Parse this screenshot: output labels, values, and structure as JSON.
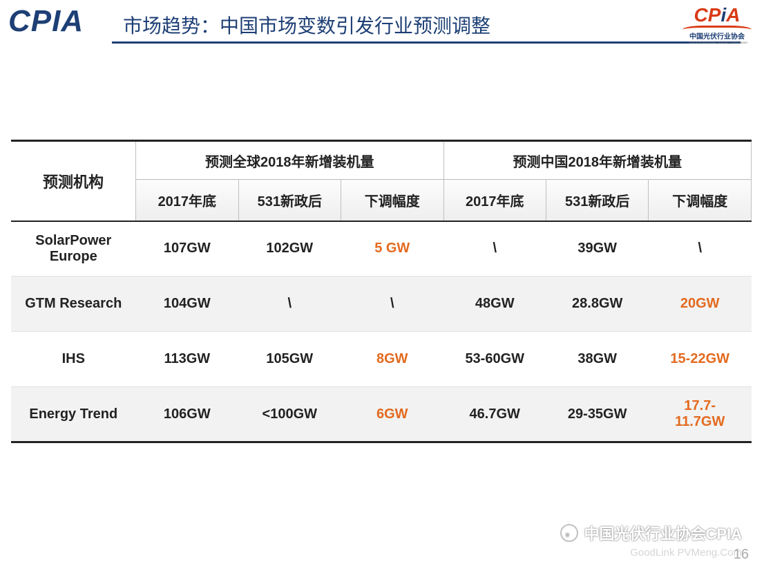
{
  "header": {
    "logo_left": "CPIA",
    "title": "市场趋势：中国市场变数引发行业预测调整",
    "logo_right_main_pre": "CP",
    "logo_right_main_mid": "i",
    "logo_right_main_post": "A",
    "logo_right_sub": "中国光伏行业协会",
    "logo_right_sub2": "China Photovoltaic Industry Association"
  },
  "table": {
    "corner": "预测机构",
    "group_global": "预测全球2018年新增装机量",
    "group_china": "预测中国2018年新增装机量",
    "sub_headers": [
      "2017年底",
      "531新政后",
      "下调幅度",
      "2017年底",
      "531新政后",
      "下调幅度"
    ],
    "rows": [
      {
        "org": "SolarPower Europe",
        "cells": [
          "107GW",
          "102GW",
          "5 GW",
          "\\",
          "39GW",
          "\\"
        ],
        "highlight": [
          false,
          false,
          true,
          false,
          false,
          false
        ]
      },
      {
        "org": "GTM Research",
        "cells": [
          "104GW",
          "\\",
          "\\",
          "48GW",
          "28.8GW",
          "20GW"
        ],
        "highlight": [
          false,
          false,
          false,
          false,
          false,
          true
        ]
      },
      {
        "org": "IHS",
        "cells": [
          "113GW",
          "105GW",
          "8GW",
          "53-60GW",
          "38GW",
          "15-22GW"
        ],
        "highlight": [
          false,
          false,
          true,
          false,
          false,
          true
        ]
      },
      {
        "org": "Energy Trend",
        "cells": [
          "106GW",
          "<100GW",
          "6GW",
          "46.7GW",
          "29-35GW",
          "17.7-11.7GW"
        ],
        "highlight": [
          false,
          false,
          true,
          false,
          false,
          true
        ]
      }
    ]
  },
  "footer": {
    "line1": "中国光伏行业协会CPIA",
    "line2": "GoodLink  PVMeng.Com",
    "page": "16"
  },
  "colors": {
    "brand_blue": "#1d3f75",
    "brand_red": "#d93b16",
    "highlight_orange": "#e36a1f",
    "stripe_bg": "#f2f2f2",
    "border_dark": "#222222",
    "border_light": "#bfbfbf"
  }
}
